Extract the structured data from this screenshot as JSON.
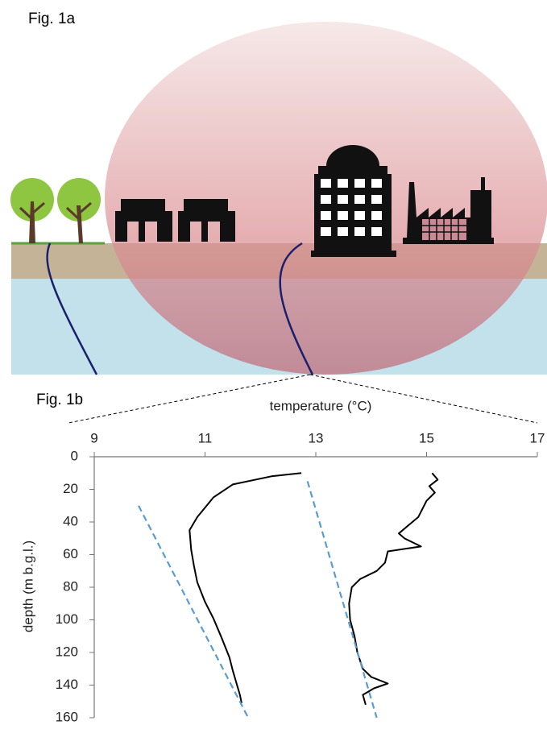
{
  "fig_labels": [
    "Fig. 1a",
    "Fig. 1b"
  ],
  "chart_data": {
    "type": "line",
    "xlabel": "temperature (°C)",
    "ylabel": "depth (m b.g.l.)",
    "xlim": [
      9,
      17
    ],
    "xticks": [
      9,
      11,
      13,
      15,
      17
    ],
    "ylim": [
      0,
      160
    ],
    "yticks": [
      0,
      20,
      40,
      60,
      80,
      100,
      120,
      140,
      160
    ],
    "y_reversed": true,
    "x_axis_position": "top",
    "series": [
      {
        "color": "#000000",
        "dashed": false,
        "x": [
          12.74,
          12.2,
          11.5,
          11.15,
          10.86,
          10.72,
          10.75,
          10.8,
          10.86,
          11.0,
          11.15,
          11.3,
          11.44,
          11.5,
          11.63,
          11.66
        ],
        "values": [
          10,
          12,
          17,
          25,
          37,
          45,
          57,
          67,
          77,
          89,
          99,
          111,
          123,
          131,
          146,
          151
        ]
      },
      {
        "color": "#000000",
        "dashed": false,
        "x": [
          15.1,
          15.2,
          15.05,
          15.15,
          15.0,
          14.85,
          14.5,
          14.6,
          14.9,
          14.3,
          14.25,
          14.1,
          13.8,
          13.65,
          13.6,
          13.62,
          13.7,
          13.75,
          13.85,
          14.0,
          14.3,
          14.05,
          13.85,
          13.9
        ],
        "values": [
          10,
          14,
          18,
          22,
          27,
          37,
          47,
          50,
          55,
          58,
          65,
          70,
          75,
          80,
          90,
          100,
          110,
          120,
          130,
          135,
          139,
          142,
          146,
          152
        ]
      },
      {
        "color": "#5b9bd5",
        "dashed": true,
        "x": [
          9.8,
          11.78
        ],
        "values": [
          30,
          160
        ]
      },
      {
        "color": "#5b9bd5",
        "dashed": true,
        "x": [
          12.85,
          14.1
        ],
        "values": [
          15,
          160
        ]
      }
    ]
  }
}
